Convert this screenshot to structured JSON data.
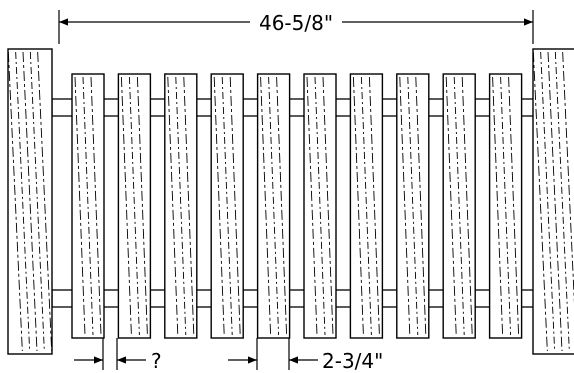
{
  "dimensions": {
    "overall_width": "46-5/8\"",
    "picket_width": "2-3/4\"",
    "gap_width": "?"
  },
  "parts": {
    "end_posts": 2,
    "pickets": 10,
    "rails": 2
  }
}
